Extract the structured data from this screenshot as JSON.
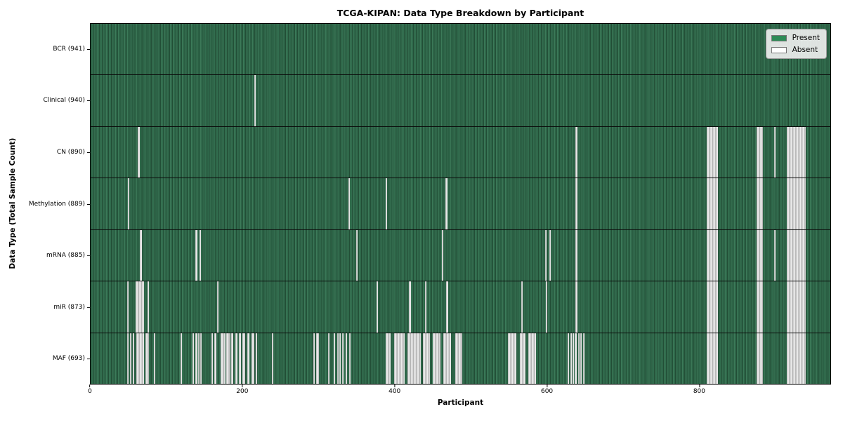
{
  "chart_data": {
    "type": "heatmap",
    "title": "TCGA-KIPAN: Data Type Breakdown by Participant",
    "xlabel": "Participant",
    "ylabel": "Data Type (Total Sample Count)",
    "xlim": [
      0,
      973
    ],
    "x_ticks": [
      0,
      200,
      400,
      600,
      800
    ],
    "grid": false,
    "legend": {
      "position": "upper right",
      "entries": [
        {
          "label": "Present",
          "color": "#2e8b57"
        },
        {
          "label": "Absent",
          "color": "#ffffff"
        }
      ]
    },
    "cell_present_color": "#2e8b57",
    "cell_absent_color": "#ffffff",
    "rows": [
      {
        "label": "BCR (941)",
        "data_type": "bcr",
        "sample_count": 941,
        "absent_ranges": []
      },
      {
        "label": "Clinical (940)",
        "data_type": "clinical",
        "sample_count": 940,
        "absent_ranges": [
          [
            215,
            217
          ]
        ]
      },
      {
        "label": "CN (890)",
        "data_type": "cn",
        "sample_count": 890,
        "absent_ranges": [
          [
            62,
            65
          ],
          [
            638,
            640
          ],
          [
            810,
            825
          ],
          [
            876,
            884
          ],
          [
            899,
            901
          ],
          [
            916,
            941
          ]
        ]
      },
      {
        "label": "Methylation (889)",
        "data_type": "methylation",
        "sample_count": 889,
        "absent_ranges": [
          [
            49,
            51
          ],
          [
            339,
            341
          ],
          [
            388,
            390
          ],
          [
            467,
            469
          ],
          [
            638,
            640
          ],
          [
            810,
            825
          ],
          [
            876,
            884
          ],
          [
            916,
            941
          ]
        ]
      },
      {
        "label": "mRNA (885)",
        "data_type": "mrna",
        "sample_count": 885,
        "absent_ranges": [
          [
            65,
            67
          ],
          [
            138,
            140
          ],
          [
            143,
            145
          ],
          [
            349,
            351
          ],
          [
            462,
            464
          ],
          [
            598,
            600
          ],
          [
            603,
            605
          ],
          [
            638,
            640
          ],
          [
            810,
            825
          ],
          [
            876,
            884
          ],
          [
            899,
            901
          ],
          [
            916,
            941
          ]
        ]
      },
      {
        "label": "miR (873)",
        "data_type": "mir",
        "sample_count": 873,
        "absent_ranges": [
          [
            48,
            50
          ],
          [
            59,
            70
          ],
          [
            75,
            77
          ],
          [
            166,
            168
          ],
          [
            376,
            378
          ],
          [
            419,
            421
          ],
          [
            440,
            442
          ],
          [
            468,
            470
          ],
          [
            566,
            568
          ],
          [
            599,
            601
          ],
          [
            638,
            640
          ],
          [
            810,
            825
          ],
          [
            876,
            884
          ],
          [
            916,
            941
          ]
        ]
      },
      {
        "label": "MAF (693)",
        "data_type": "maf",
        "sample_count": 693,
        "absent_ranges": [
          [
            48,
            50
          ],
          [
            52,
            54
          ],
          [
            55,
            57
          ],
          [
            60,
            70
          ],
          [
            72,
            77
          ],
          [
            83,
            85
          ],
          [
            118,
            120
          ],
          [
            134,
            136
          ],
          [
            138,
            140
          ],
          [
            141,
            143
          ],
          [
            144,
            146
          ],
          [
            159,
            161
          ],
          [
            163,
            165
          ],
          [
            171,
            177
          ],
          [
            178,
            184
          ],
          [
            185,
            188
          ],
          [
            190,
            193
          ],
          [
            195,
            198
          ],
          [
            200,
            203
          ],
          [
            206,
            209
          ],
          [
            212,
            215
          ],
          [
            217,
            219
          ],
          [
            238,
            240
          ],
          [
            293,
            295
          ],
          [
            297,
            300
          ],
          [
            312,
            314
          ],
          [
            320,
            322
          ],
          [
            324,
            326
          ],
          [
            327,
            329
          ],
          [
            331,
            333
          ],
          [
            335,
            337
          ],
          [
            340,
            342
          ],
          [
            388,
            395
          ],
          [
            399,
            413
          ],
          [
            417,
            434
          ],
          [
            437,
            446
          ],
          [
            450,
            460
          ],
          [
            464,
            474
          ],
          [
            480,
            489
          ],
          [
            549,
            560
          ],
          [
            565,
            572
          ],
          [
            576,
            586
          ],
          [
            627,
            629
          ],
          [
            631,
            633
          ],
          [
            634,
            636
          ],
          [
            637,
            639
          ],
          [
            641,
            643
          ],
          [
            644,
            646
          ],
          [
            648,
            650
          ],
          [
            810,
            825
          ],
          [
            876,
            884
          ],
          [
            916,
            941
          ]
        ]
      }
    ]
  }
}
